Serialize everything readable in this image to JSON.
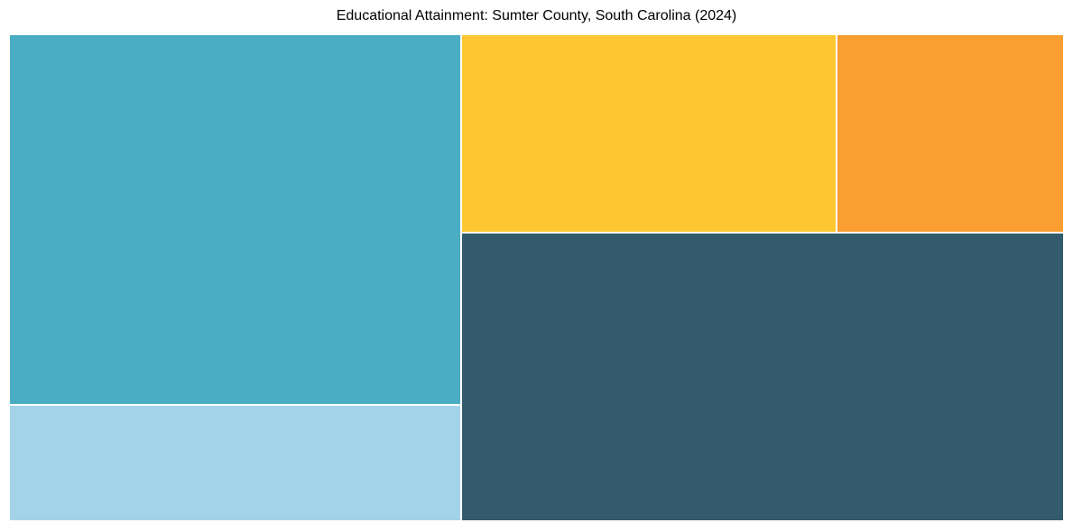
{
  "page": {
    "title": "Educational Attainment: Sumter County, South Carolina (2024)"
  },
  "chart_data": {
    "type": "treemap",
    "title": "Educational Attainment: Sumter County, South Carolina (2024)",
    "legend": "none",
    "axes": "none",
    "labels_visible": false,
    "tiles": [
      {
        "name": "tile-1",
        "position": "left-top",
        "color": "#4badc4",
        "area_pct_est": 32.6
      },
      {
        "name": "tile-2",
        "position": "left-bottom",
        "color": "#a3d3e8",
        "area_pct_est": 10.2
      },
      {
        "name": "tile-3",
        "position": "middle-top",
        "color": "#fec732",
        "area_pct_est": 14.5
      },
      {
        "name": "tile-4",
        "position": "right-top",
        "color": "#fb9e32",
        "area_pct_est": 8.8
      },
      {
        "name": "tile-5",
        "position": "right-bottom",
        "color": "#345a6e",
        "area_pct_est": 33.9
      }
    ]
  },
  "colors": {
    "background": "#ffffff",
    "title_text": "#000000",
    "tile_gap": "#ffffff"
  }
}
